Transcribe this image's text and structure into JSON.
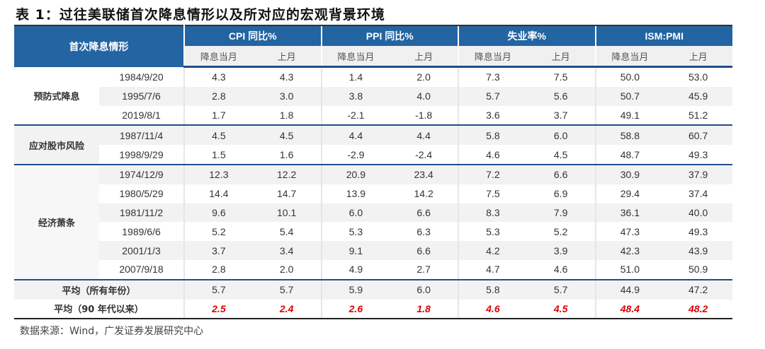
{
  "title": "表 1：过往美联储首次降息情形以及所对应的宏观背景环境",
  "header": {
    "corner": "首次降息情形",
    "groups": [
      "CPI 同比%",
      "PPI 同比%",
      "失业率%",
      "ISM:PMI"
    ],
    "sub": [
      "降息当月",
      "上月"
    ]
  },
  "groups": [
    {
      "label": "预防式降息",
      "rows": [
        {
          "date": "1984/9/20",
          "values": [
            "4.3",
            "4.3",
            "1.4",
            "2.0",
            "7.3",
            "7.5",
            "50.0",
            "53.0"
          ]
        },
        {
          "date": "1995/7/6",
          "values": [
            "2.8",
            "3.0",
            "3.8",
            "4.0",
            "5.7",
            "5.6",
            "50.7",
            "45.9"
          ]
        },
        {
          "date": "2019/8/1",
          "values": [
            "1.7",
            "1.8",
            "-2.1",
            "-1.8",
            "3.6",
            "3.7",
            "49.1",
            "51.2"
          ]
        }
      ]
    },
    {
      "label": "应对股市风险",
      "rows": [
        {
          "date": "1987/11/4",
          "values": [
            "4.5",
            "4.5",
            "4.4",
            "4.4",
            "5.8",
            "6.0",
            "58.8",
            "60.7"
          ]
        },
        {
          "date": "1998/9/29",
          "values": [
            "1.5",
            "1.6",
            "-2.9",
            "-2.4",
            "4.6",
            "4.5",
            "48.7",
            "49.3"
          ]
        }
      ]
    },
    {
      "label": "经济萧条",
      "rows": [
        {
          "date": "1974/12/9",
          "values": [
            "12.3",
            "12.2",
            "20.9",
            "23.4",
            "7.2",
            "6.6",
            "30.9",
            "37.9"
          ]
        },
        {
          "date": "1980/5/29",
          "values": [
            "14.4",
            "14.7",
            "13.9",
            "14.2",
            "7.5",
            "6.9",
            "29.4",
            "37.4"
          ]
        },
        {
          "date": "1981/11/2",
          "values": [
            "9.6",
            "10.1",
            "6.0",
            "6.6",
            "8.3",
            "7.9",
            "36.1",
            "40.0"
          ]
        },
        {
          "date": "1989/6/6",
          "values": [
            "5.2",
            "5.4",
            "5.3",
            "6.3",
            "5.3",
            "5.2",
            "47.3",
            "49.3"
          ]
        },
        {
          "date": "2001/1/3",
          "values": [
            "3.7",
            "3.4",
            "9.1",
            "6.6",
            "4.2",
            "3.9",
            "42.3",
            "43.9"
          ]
        },
        {
          "date": "2007/9/18",
          "values": [
            "2.8",
            "2.0",
            "4.9",
            "2.7",
            "4.7",
            "4.6",
            "51.0",
            "50.9"
          ]
        }
      ]
    }
  ],
  "averages": [
    {
      "label": "平均（所有年份）",
      "values": [
        "5.7",
        "5.7",
        "5.9",
        "6.0",
        "5.8",
        "5.7",
        "44.9",
        "47.2"
      ]
    },
    {
      "label": "平均（90 年代以来）",
      "values": [
        "2.5",
        "2.4",
        "2.6",
        "1.8",
        "4.6",
        "4.5",
        "48.4",
        "48.2"
      ],
      "highlight_color": "#dd0000"
    }
  ],
  "source": "数据来源：Wind，广发证券发展研究中心"
}
